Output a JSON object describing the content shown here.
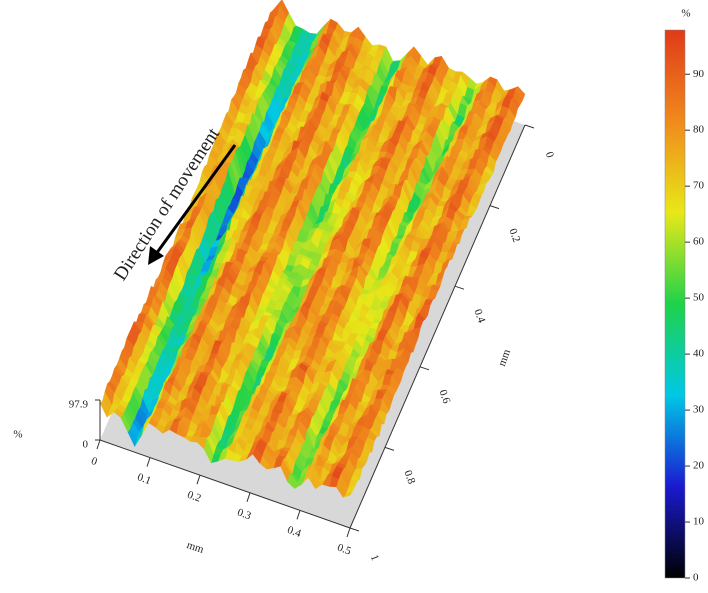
{
  "chart_data": {
    "type": "surface",
    "annotation": "Direction of movement",
    "xlabel": "mm",
    "ylabel": "mm",
    "zlabel": "%",
    "xlim": [
      0,
      0.5
    ],
    "xticks": [
      0,
      0.1,
      0.2,
      0.3,
      0.4,
      0.5
    ],
    "ylim": [
      0,
      1
    ],
    "yticks": [
      0,
      0.2,
      0.4,
      0.6,
      0.8,
      1
    ],
    "zlim": [
      0,
      97.9
    ],
    "zticks": [
      0,
      97.9
    ],
    "colorbar": {
      "label": "%",
      "lim": [
        0,
        97.9
      ],
      "ticks": [
        0,
        10,
        20,
        30,
        40,
        50,
        60,
        70,
        80,
        90
      ],
      "colors": [
        "#000000",
        "#1a1ad0",
        "#00c8e6",
        "#1fd24a",
        "#e8e818",
        "#f08a1c",
        "#e03a1a"
      ]
    }
  }
}
